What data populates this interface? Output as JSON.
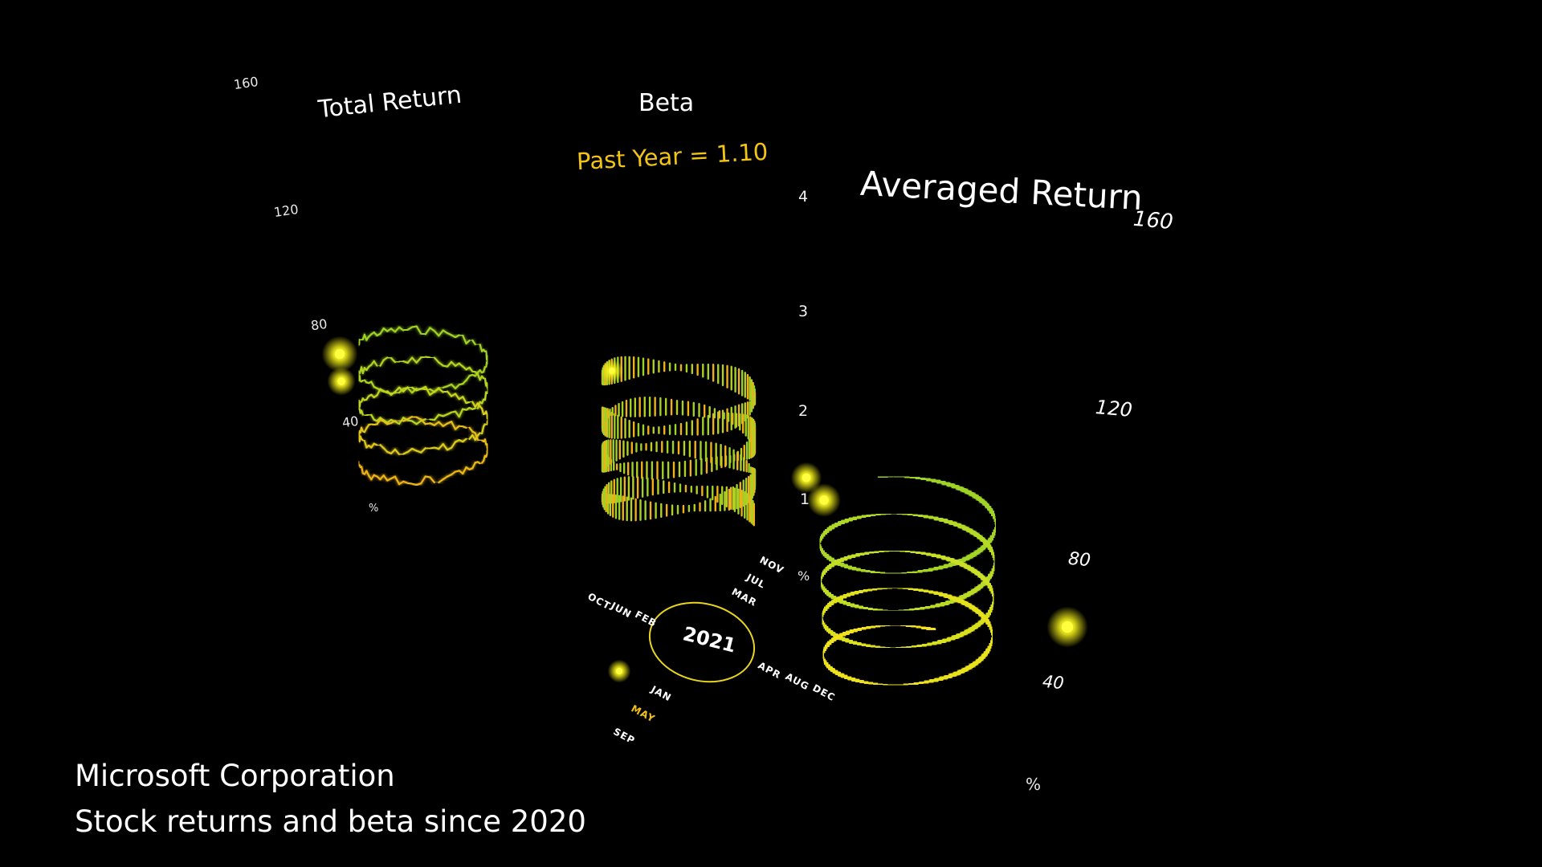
{
  "company": "Microsoft Corporation",
  "subtitle": "Stock returns and beta since 2020",
  "colors": {
    "background": "#000000",
    "green": "#9bd126",
    "yellow": "#f4e21a",
    "orange": "#f0b018",
    "year_ring": "#e8d51e",
    "highlight_month": "#f2c018"
  },
  "chart_data": [
    {
      "type": "line",
      "title": "Total Return",
      "unit_label": "%",
      "yticks": [
        "160",
        "120",
        "80",
        "40"
      ],
      "ylim": [
        0,
        160
      ]
    },
    {
      "type": "bar",
      "title": "Beta",
      "annotation": "Past Year = 1.10",
      "yticks": [
        "4",
        "3",
        "2",
        "1"
      ],
      "ylim": [
        0,
        4
      ]
    },
    {
      "type": "line",
      "title": "Averaged Return",
      "unit_label": "%",
      "yticks": [
        "160",
        "120",
        "80",
        "40"
      ],
      "ylim": [
        0,
        160
      ]
    }
  ],
  "calendar": {
    "year": "2021",
    "months_upper_left": [
      "OCT",
      "JUN",
      "FEB"
    ],
    "months_upper_right": [
      "NOV",
      "JUL",
      "MAR"
    ],
    "months_lower_left": [
      "JAN",
      "MAY",
      "SEP"
    ],
    "months_lower_right": [
      "APR",
      "AUG",
      "DEC"
    ],
    "highlighted_month": "MAY"
  },
  "axis_unit_beta_panel": "%"
}
